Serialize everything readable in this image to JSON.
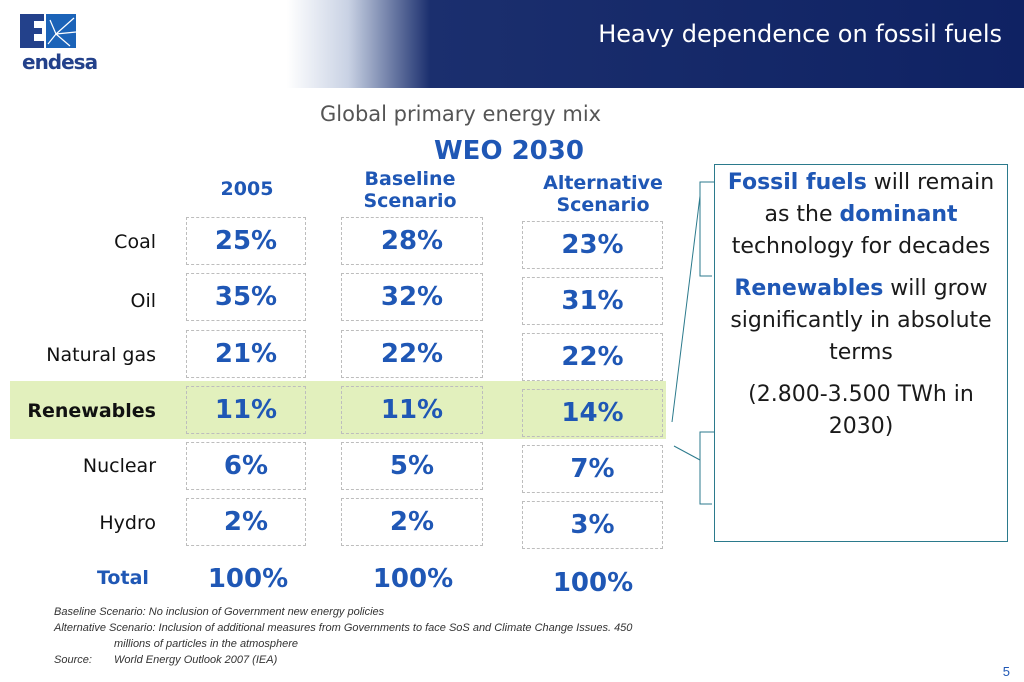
{
  "header": {
    "title": "Heavy dependence on fossil fuels",
    "logo_text": "endesa"
  },
  "subtitle": "Global primary energy mix",
  "weo": "WEO 2030",
  "columns": [
    {
      "label": "2005"
    },
    {
      "label_line1": "Baseline",
      "label_line2": "Scenario"
    },
    {
      "label_line1": "Alternative",
      "label_line2": "Scenario"
    }
  ],
  "rows": [
    {
      "label": "Coal",
      "values": [
        "25%",
        "28%",
        "23%"
      ]
    },
    {
      "label": "Oil",
      "values": [
        "35%",
        "32%",
        "31%"
      ]
    },
    {
      "label": "Natural gas",
      "values": [
        "21%",
        "22%",
        "22%"
      ]
    },
    {
      "label": "Renewables",
      "values": [
        "11%",
        "11%",
        "14%"
      ],
      "highlighted": true
    },
    {
      "label": "Nuclear",
      "values": [
        "6%",
        "5%",
        "7%"
      ]
    },
    {
      "label": "Hydro",
      "values": [
        "2%",
        "2%",
        "3%"
      ]
    }
  ],
  "total": {
    "label": "Total",
    "values": [
      "100%",
      "100%",
      "100%"
    ]
  },
  "note": {
    "p1_a": "Fossil fuels",
    "p1_b": " will remain as the ",
    "p1_c": "dominant",
    "p1_d": " technology for decades",
    "p2_a": "Renewables",
    "p2_b": " will grow significantly in absolute terms",
    "p3": "(2.800-3.500 TWh in 2030)"
  },
  "footnotes": {
    "line1": "Baseline Scenario: No inclusion of Government new energy policies",
    "line2": "Alternative Scenario: Inclusion of additional measures from Governments to face SoS and Climate Change Issues. 450",
    "line3": "millions of particles in the atmosphere",
    "source_label": "Source:",
    "source_text": "World Energy Outlook 2007 (IEA)"
  },
  "page_number": "5",
  "colors": {
    "accent": "#1f57b5",
    "header_navy": "#0f2263",
    "highlight": "#e2f0bd"
  }
}
